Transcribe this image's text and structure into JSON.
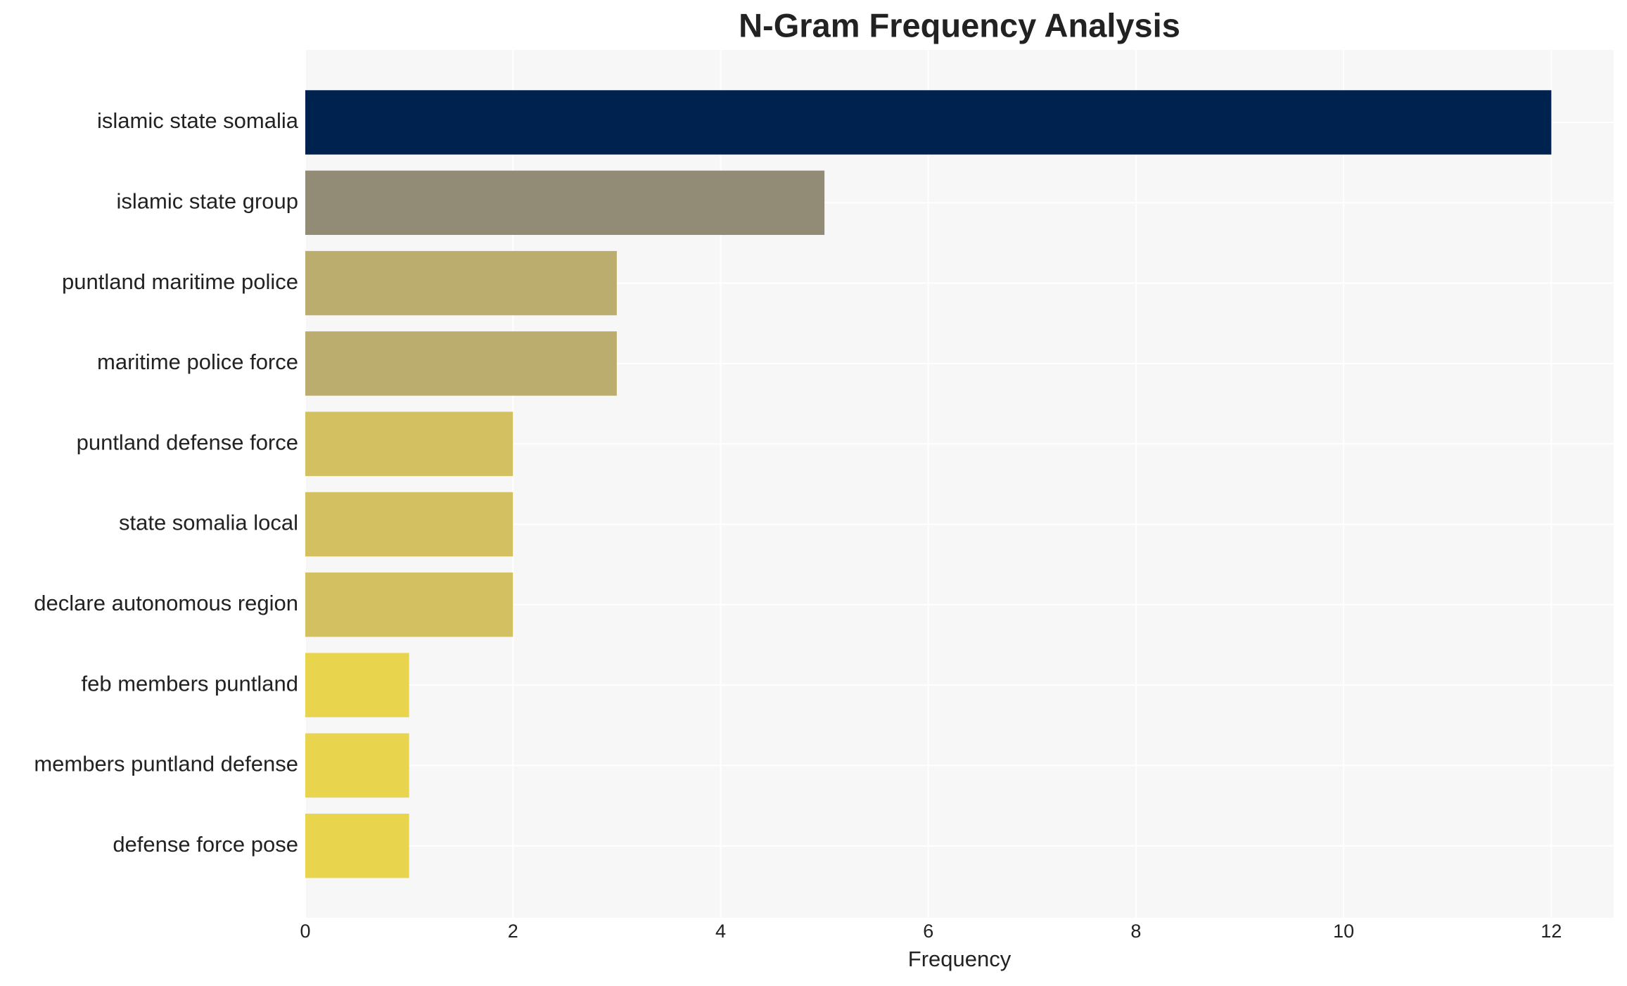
{
  "chart_data": {
    "type": "bar",
    "orientation": "horizontal",
    "title": "N-Gram Frequency Analysis",
    "x_label": "Frequency",
    "categories": [
      "islamic state somalia",
      "islamic state group",
      "puntland maritime police",
      "maritime police force",
      "puntland defense force",
      "state somalia local",
      "declare autonomous region",
      "feb members puntland",
      "members puntland defense",
      "defense force pose"
    ],
    "values": [
      12,
      5,
      3,
      3,
      2,
      2,
      2,
      1,
      1,
      1
    ],
    "colors": [
      "#00224e",
      "#928b75",
      "#bbad6d",
      "#bbad6d",
      "#d3c061",
      "#d3c061",
      "#d3c061",
      "#e8d44d",
      "#e8d44d",
      "#e8d44d"
    ],
    "xlim": [
      0,
      12.6
    ],
    "xticks": [
      0,
      2,
      4,
      6,
      8,
      10,
      12
    ],
    "grid": true
  }
}
